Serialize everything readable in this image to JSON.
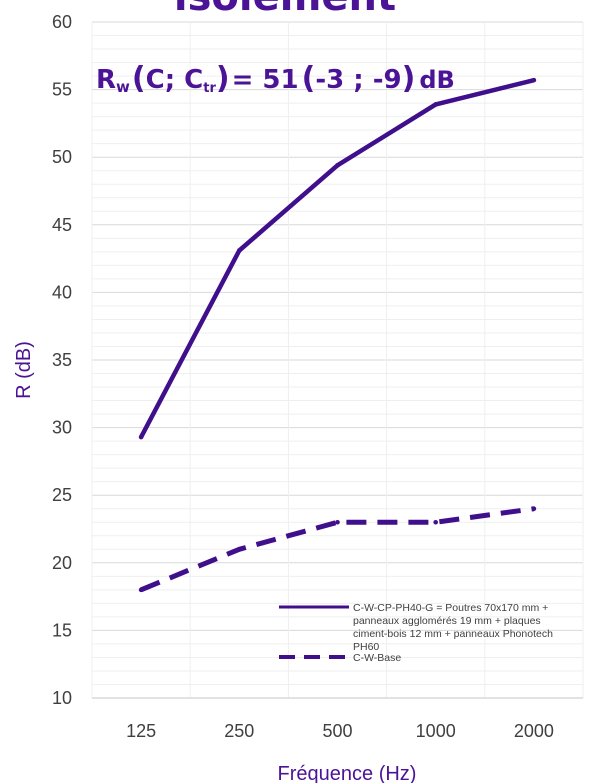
{
  "header": {
    "title": "isolement",
    "formula": {
      "r": "R",
      "w": "w",
      "open1": "(",
      "c": "C; C",
      "tr": "tr",
      "close1": ")",
      "eq": "= 51",
      "open2": "(",
      "values": "-3 ; -9",
      "close2": ")",
      "unit": "dB"
    }
  },
  "chart_data": {
    "type": "line",
    "categories": [
      "125",
      "250",
      "500",
      "1000",
      "2000"
    ],
    "series": [
      {
        "name": "C-W-CP-PH40-G = Poutres  70x170 mm + panneaux agglomérés 19 mm + plaques ciment-bois 12 mm + panneaux Phonotech PH60",
        "style": "solid",
        "color": "#3f0f8c",
        "values": [
          29.3,
          43.1,
          49.4,
          53.9,
          55.7
        ]
      },
      {
        "name": "C-W-Base",
        "style": "dashed",
        "color": "#3f0f8c",
        "values": [
          18,
          21,
          23,
          23,
          24
        ]
      }
    ],
    "xlabel": "Fréquence (Hz)",
    "ylabel": "R (dB)",
    "ylim": [
      10,
      60
    ],
    "yticks": [
      "10",
      "15",
      "20",
      "25",
      "30",
      "35",
      "40",
      "45",
      "50",
      "55",
      "60"
    ],
    "grid": true,
    "legend_position": "bottom-right",
    "legend_lines": [
      [
        "C-W-CP-PH40-G = Poutres  70x170 mm +",
        "panneaux agglomérés 19 mm + plaques",
        "ciment-bois 12 mm + panneaux Phonotech",
        "PH60"
      ],
      [
        "C-W-Base"
      ]
    ]
  }
}
